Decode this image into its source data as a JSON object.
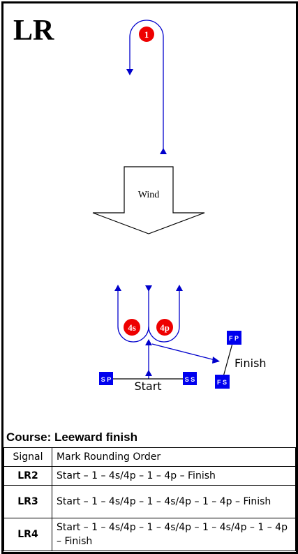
{
  "heading": "LR",
  "marks": {
    "windward": "1",
    "gate_starboard": "4s",
    "gate_port": "4p",
    "start_pin": "S P",
    "start_boat": "S S",
    "finish_pin": "F P",
    "finish_boat": "F S"
  },
  "labels": {
    "wind": "Wind",
    "start": "Start",
    "finish": "Finish"
  },
  "colors": {
    "course_line": "#0000cc",
    "round_mark": "#ee0000",
    "boat_mark": "#0000ee"
  },
  "course_title": "Course: Leeward finish",
  "table": {
    "headers": [
      "Signal",
      "Mark Rounding Order"
    ],
    "rows": [
      {
        "signal": "LR2",
        "order": "Start – 1 – 4s/4p – 1 – 4p – Finish"
      },
      {
        "signal": "LR3",
        "order": "Start – 1 – 4s/4p – 1 – 4s/4p – 1 – 4p – Finish"
      },
      {
        "signal": "LR4",
        "order": "Start – 1 – 4s/4p – 1 – 4s/4p – 1 – 4s/4p – 1 – 4p – Finish"
      }
    ]
  }
}
